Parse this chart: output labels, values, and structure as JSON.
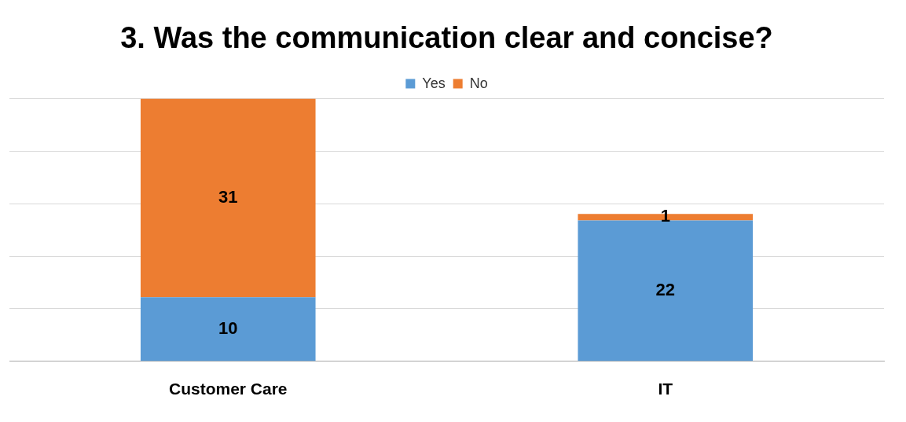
{
  "chart_data": {
    "type": "bar",
    "title": "3. Was the communication clear and concise?",
    "categories": [
      "Customer Care",
      "IT"
    ],
    "stacked": true,
    "data_labels": true,
    "grid": "y",
    "legend": "top",
    "series": [
      {
        "name": "Yes",
        "color": "#5b9bd5",
        "values": [
          10,
          22
        ]
      },
      {
        "name": "No",
        "color": "#ed7d31",
        "values": [
          31,
          1
        ]
      }
    ]
  }
}
